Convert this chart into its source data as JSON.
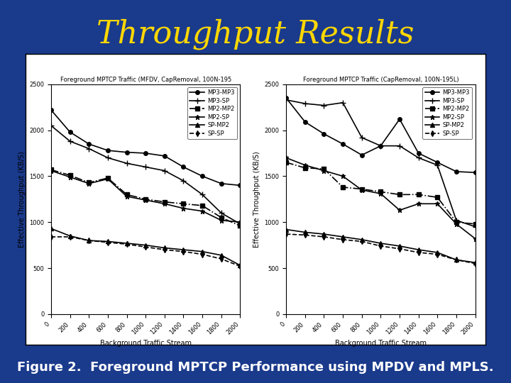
{
  "bg_color": "#1a3a8c",
  "title": "Throughput Results",
  "title_color": "#ffd700",
  "title_fontsize": 32,
  "caption": "Figure 2.  Foreground MPTCP Performance using MPDV and MPLS.",
  "caption_color": "#ffffff",
  "caption_fontsize": 13,
  "x_ticks": [
    0,
    200,
    400,
    600,
    800,
    1000,
    1200,
    1400,
    1600,
    1800,
    2000
  ],
  "xlabel": "Background Traffic Stream",
  "ylabel": "Effective Throughput (KB/S)",
  "ylim": [
    0,
    2500
  ],
  "xlim": [
    0,
    2000
  ],
  "subplot1_title": "Foreground MPTCP Traffic (MFDV, CapRemoval, 100N-195",
  "subplot2_title": "Foreground MPTCP Traffic (CapRemoval, 100N-195L)",
  "series_labels": [
    "MP3-MP3",
    "MP3-SP",
    "MP2-MP2",
    "MP2-SP",
    "SP-MP2",
    "SP-SP"
  ],
  "subplot1": {
    "MP3-MP3": [
      2220,
      1980,
      1850,
      1780,
      1760,
      1750,
      1720,
      1600,
      1500,
      1420,
      1400
    ],
    "MP3-SP": [
      2050,
      1880,
      1800,
      1700,
      1640,
      1600,
      1560,
      1450,
      1300,
      1100,
      980
    ],
    "MP2-MP2": [
      1570,
      1510,
      1430,
      1480,
      1300,
      1250,
      1220,
      1200,
      1180,
      1050,
      960
    ],
    "MP2-SP": [
      1560,
      1490,
      1420,
      1470,
      1280,
      1240,
      1200,
      1150,
      1120,
      1020,
      1000
    ],
    "SP-MP2": [
      930,
      850,
      800,
      790,
      770,
      750,
      720,
      700,
      680,
      640,
      530
    ],
    "SP-SP": [
      840,
      840,
      800,
      780,
      760,
      730,
      700,
      680,
      650,
      600,
      520
    ]
  },
  "subplot2": {
    "MP3-MP3": [
      2350,
      2090,
      1960,
      1850,
      1730,
      1830,
      2120,
      1750,
      1650,
      1550,
      1540
    ],
    "MP3-SP": [
      2330,
      2290,
      2270,
      2300,
      1920,
      1830,
      1830,
      1700,
      1620,
      1020,
      950
    ],
    "MP2-MP2": [
      1650,
      1590,
      1580,
      1380,
      1360,
      1330,
      1300,
      1300,
      1270,
      1000,
      980
    ],
    "MP2-SP": [
      1700,
      1620,
      1560,
      1500,
      1350,
      1310,
      1130,
      1200,
      1200,
      980,
      820
    ],
    "SP-MP2": [
      920,
      890,
      870,
      840,
      810,
      770,
      740,
      700,
      670,
      590,
      560
    ],
    "SP-SP": [
      870,
      860,
      840,
      810,
      790,
      740,
      710,
      670,
      650,
      590,
      550
    ]
  },
  "line_styles": {
    "MP3-MP3": {
      "color": "black",
      "marker": "o",
      "linestyle": "-",
      "markersize": 4
    },
    "MP3-SP": {
      "color": "black",
      "marker": "+",
      "linestyle": "-",
      "markersize": 6
    },
    "MP2-MP2": {
      "color": "black",
      "marker": "s",
      "linestyle": "-.",
      "markersize": 4
    },
    "MP2-SP": {
      "color": "black",
      "marker": "*",
      "linestyle": "-",
      "markersize": 5
    },
    "SP-MP2": {
      "color": "black",
      "marker": "^",
      "linestyle": "-",
      "markersize": 4
    },
    "SP-SP": {
      "color": "black",
      "marker": "d",
      "linestyle": "--",
      "markersize": 4
    }
  }
}
